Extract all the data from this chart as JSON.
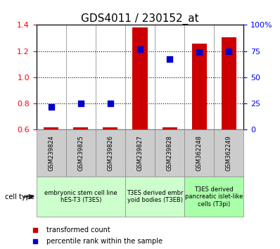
{
  "title": "GDS4011 / 230152_at",
  "samples": [
    "GSM239824",
    "GSM239825",
    "GSM239826",
    "GSM239827",
    "GSM239828",
    "GSM362248",
    "GSM362249"
  ],
  "transformed_count": [
    0.615,
    0.618,
    0.617,
    1.38,
    0.615,
    1.255,
    1.305
  ],
  "percentile_rank": [
    0.775,
    0.8,
    0.8,
    1.215,
    1.14,
    1.19,
    1.195
  ],
  "ylim_left": [
    0.6,
    1.4
  ],
  "ylim_right": [
    0,
    100
  ],
  "yticks_left": [
    0.6,
    0.8,
    1.0,
    1.2,
    1.4
  ],
  "yticks_right": [
    0,
    25,
    50,
    75,
    100
  ],
  "ytick_labels_right": [
    "0",
    "25",
    "50",
    "75",
    "100%"
  ],
  "bar_color": "#cc0000",
  "dot_color": "#0000cc",
  "sample_box_color": "#cccccc",
  "cell_type_groups": [
    {
      "label": "embryonic stem cell line\nhES-T3 (T3ES)",
      "start": 0,
      "end": 3,
      "color": "#ccffcc"
    },
    {
      "label": "T3ES derived embr\nyoid bodies (T3EB)",
      "start": 3,
      "end": 5,
      "color": "#ccffcc"
    },
    {
      "label": "T3ES derived\npancreatic islet-like\ncells (T3pi)",
      "start": 5,
      "end": 7,
      "color": "#aaffaa"
    }
  ],
  "legend_items": [
    {
      "label": "transformed count",
      "color": "#cc0000"
    },
    {
      "label": "percentile rank within the sample",
      "color": "#0000cc"
    }
  ],
  "cell_type_label": "cell type",
  "bar_width": 0.5,
  "dot_size": 30,
  "title_fontsize": 11,
  "tick_fontsize": 8,
  "label_fontsize": 7,
  "sample_fontsize": 6,
  "celltype_fontsize": 6
}
